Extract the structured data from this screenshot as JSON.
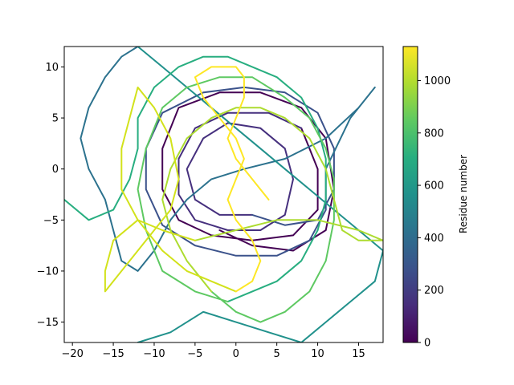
{
  "chart_data": {
    "type": "line",
    "title": "",
    "xlabel": "",
    "ylabel": "",
    "xlim": [
      -21,
      18
    ],
    "ylim": [
      -17,
      12
    ],
    "xticks": [
      -20,
      -15,
      -10,
      -5,
      0,
      5,
      10,
      15
    ],
    "yticks": [
      -15,
      -10,
      -5,
      0,
      5,
      10
    ],
    "grid": false,
    "colorbar": {
      "label": "Residue number",
      "range": [
        0,
        1130
      ],
      "ticks": [
        0,
        200,
        400,
        600,
        800,
        1000
      ],
      "colormap": "viridis"
    },
    "series": [
      {
        "residue_range": [
          0,
          60
        ],
        "color": "#440154",
        "points": [
          [
            -2,
            -6
          ],
          [
            2,
            -7.5
          ],
          [
            7,
            -8
          ],
          [
            11,
            -6
          ],
          [
            12,
            -2
          ],
          [
            11,
            3
          ],
          [
            8,
            6
          ],
          [
            3,
            7.5
          ],
          [
            -2,
            7.5
          ],
          [
            -7,
            6
          ],
          [
            -9,
            2
          ],
          [
            -9,
            -2
          ],
          [
            -7,
            -5
          ],
          [
            -3,
            -6.5
          ],
          [
            2,
            -7
          ],
          [
            7,
            -6.5
          ],
          [
            10,
            -4
          ],
          [
            10,
            0
          ],
          [
            8,
            4
          ]
        ]
      },
      {
        "residue_range": [
          60,
          120
        ],
        "color": "#46307e",
        "points": [
          [
            8,
            4
          ],
          [
            4,
            5.5
          ],
          [
            -1,
            5.5
          ],
          [
            -5,
            4
          ],
          [
            -7,
            1
          ],
          [
            -7,
            -2.5
          ],
          [
            -5,
            -5
          ],
          [
            -1,
            -6
          ],
          [
            3,
            -6
          ],
          [
            6,
            -4.5
          ],
          [
            7,
            -1
          ],
          [
            6,
            2
          ],
          [
            3,
            4
          ],
          [
            -1,
            4.5
          ],
          [
            -4,
            3
          ],
          [
            -6,
            0
          ],
          [
            -5,
            -3
          ],
          [
            -2,
            -4.5
          ],
          [
            2,
            -4.5
          ]
        ]
      },
      {
        "residue_range": [
          120,
          180
        ],
        "color": "#3b528b",
        "points": [
          [
            2,
            -4.5
          ],
          [
            6,
            -5.5
          ],
          [
            10,
            -5
          ],
          [
            12,
            -2
          ],
          [
            12,
            2
          ],
          [
            10,
            5.5
          ],
          [
            6,
            7.5
          ],
          [
            1,
            8
          ],
          [
            -4,
            7.5
          ],
          [
            -9,
            5.5
          ],
          [
            -11,
            2
          ],
          [
            -11,
            -2
          ],
          [
            -9,
            -5.5
          ],
          [
            -5,
            -7.5
          ],
          [
            0,
            -8.5
          ],
          [
            5,
            -8.5
          ],
          [
            9,
            -7
          ],
          [
            11,
            -4
          ],
          [
            11,
            0
          ]
        ]
      },
      {
        "residue_range": [
          180,
          260
        ],
        "color": "#2c728e",
        "points": [
          [
            11,
            0
          ],
          [
            14,
            5
          ],
          [
            17,
            8
          ],
          [
            15,
            6
          ],
          [
            11,
            3
          ],
          [
            6,
            1
          ],
          [
            1,
            0
          ],
          [
            -3,
            -1
          ],
          [
            -6,
            -3
          ],
          [
            -8,
            -5
          ],
          [
            -10,
            -8
          ],
          [
            -12,
            -10
          ],
          [
            -14,
            -9
          ],
          [
            -15,
            -6
          ],
          [
            -16,
            -3
          ],
          [
            -18,
            0
          ],
          [
            -19,
            3
          ],
          [
            -18,
            6
          ],
          [
            -16,
            9
          ],
          [
            -14,
            11
          ],
          [
            -12,
            12
          ]
        ]
      },
      {
        "residue_range": [
          260,
          380
        ],
        "color": "#21918c",
        "points": [
          [
            -12,
            12
          ],
          [
            -9,
            10
          ],
          [
            -6,
            8
          ],
          [
            -3,
            6
          ],
          [
            0,
            4
          ],
          [
            3,
            2
          ],
          [
            6,
            0
          ],
          [
            9,
            -2
          ],
          [
            12,
            -4
          ],
          [
            15,
            -6
          ],
          [
            18,
            -8
          ],
          [
            17,
            -11
          ],
          [
            14,
            -13
          ],
          [
            11,
            -15
          ],
          [
            8,
            -17
          ],
          [
            4,
            -16
          ],
          [
            0,
            -15
          ],
          [
            -4,
            -14
          ],
          [
            -8,
            -16
          ],
          [
            -12,
            -17
          ]
        ]
      },
      {
        "residue_range": [
          380,
          500
        ],
        "color": "#28ae80",
        "points": [
          [
            -21,
            -3
          ],
          [
            -18,
            -5
          ],
          [
            -15,
            -4
          ],
          [
            -13,
            -1
          ],
          [
            -12,
            2
          ],
          [
            -12,
            5
          ],
          [
            -10,
            8
          ],
          [
            -7,
            10
          ],
          [
            -4,
            11
          ],
          [
            -1,
            11
          ],
          [
            2,
            10
          ],
          [
            5,
            9
          ],
          [
            8,
            7
          ],
          [
            10,
            4
          ],
          [
            11,
            1
          ],
          [
            11,
            -3
          ],
          [
            10,
            -6
          ],
          [
            8,
            -9
          ],
          [
            5,
            -11
          ],
          [
            2,
            -12
          ],
          [
            -1,
            -13
          ]
        ]
      },
      {
        "residue_range": [
          500,
          620
        ],
        "color": "#5ec962",
        "points": [
          [
            -1,
            -13
          ],
          [
            -5,
            -12
          ],
          [
            -9,
            -10
          ],
          [
            -11,
            -6
          ],
          [
            -12,
            -2
          ],
          [
            -11,
            2
          ],
          [
            -9,
            6
          ],
          [
            -6,
            8
          ],
          [
            -2,
            9
          ],
          [
            2,
            9
          ],
          [
            6,
            7
          ],
          [
            9,
            5
          ],
          [
            11,
            2
          ],
          [
            12,
            -1
          ],
          [
            12,
            -5
          ],
          [
            11,
            -9
          ],
          [
            9,
            -12
          ],
          [
            6,
            -14
          ],
          [
            3,
            -15
          ],
          [
            0,
            -14
          ],
          [
            -3,
            -12
          ]
        ]
      },
      {
        "residue_range": [
          620,
          780
        ],
        "color": "#addc30",
        "points": [
          [
            -3,
            -12
          ],
          [
            -6,
            -9
          ],
          [
            -8,
            -6
          ],
          [
            -9,
            -3
          ],
          [
            -8,
            0
          ],
          [
            -6,
            3
          ],
          [
            -3,
            5
          ],
          [
            0,
            6
          ],
          [
            3,
            6
          ],
          [
            6,
            5
          ],
          [
            9,
            3
          ],
          [
            11,
            0
          ],
          [
            12,
            -3
          ],
          [
            13,
            -6
          ],
          [
            15,
            -7
          ],
          [
            18,
            -7
          ],
          [
            15,
            -6
          ],
          [
            10,
            -5
          ],
          [
            5,
            -5
          ],
          [
            0,
            -6
          ],
          [
            -5,
            -7
          ]
        ]
      },
      {
        "residue_range": [
          780,
          950
        ],
        "color": "#d2e21b",
        "points": [
          [
            -5,
            -7
          ],
          [
            -9,
            -6
          ],
          [
            -12,
            -5
          ],
          [
            -15,
            -7
          ],
          [
            -16,
            -10
          ],
          [
            -16,
            -12
          ],
          [
            -13,
            -9
          ],
          [
            -10,
            -6
          ],
          [
            -8,
            -4
          ],
          [
            -7,
            -1
          ],
          [
            -8,
            3
          ],
          [
            -10,
            6
          ],
          [
            -12,
            8
          ],
          [
            -13,
            5
          ],
          [
            -14,
            2
          ],
          [
            -14,
            -2
          ],
          [
            -12,
            -5
          ],
          [
            -9,
            -8
          ],
          [
            -6,
            -10
          ],
          [
            -3,
            -11
          ],
          [
            0,
            -12
          ]
        ]
      },
      {
        "residue_range": [
          950,
          1130
        ],
        "color": "#fde725",
        "points": [
          [
            0,
            -12
          ],
          [
            2,
            -11
          ],
          [
            3,
            -9
          ],
          [
            2,
            -7
          ],
          [
            0,
            -5
          ],
          [
            -1,
            -3
          ],
          [
            0,
            -1
          ],
          [
            1,
            1
          ],
          [
            0,
            3
          ],
          [
            -2,
            5
          ],
          [
            -4,
            7
          ],
          [
            -5,
            9
          ],
          [
            -3,
            10
          ],
          [
            0,
            10
          ],
          [
            1,
            9
          ],
          [
            1,
            7
          ],
          [
            0,
            5
          ],
          [
            -1,
            3
          ],
          [
            0,
            1
          ],
          [
            2,
            -1
          ],
          [
            4,
            -3
          ]
        ]
      }
    ]
  }
}
